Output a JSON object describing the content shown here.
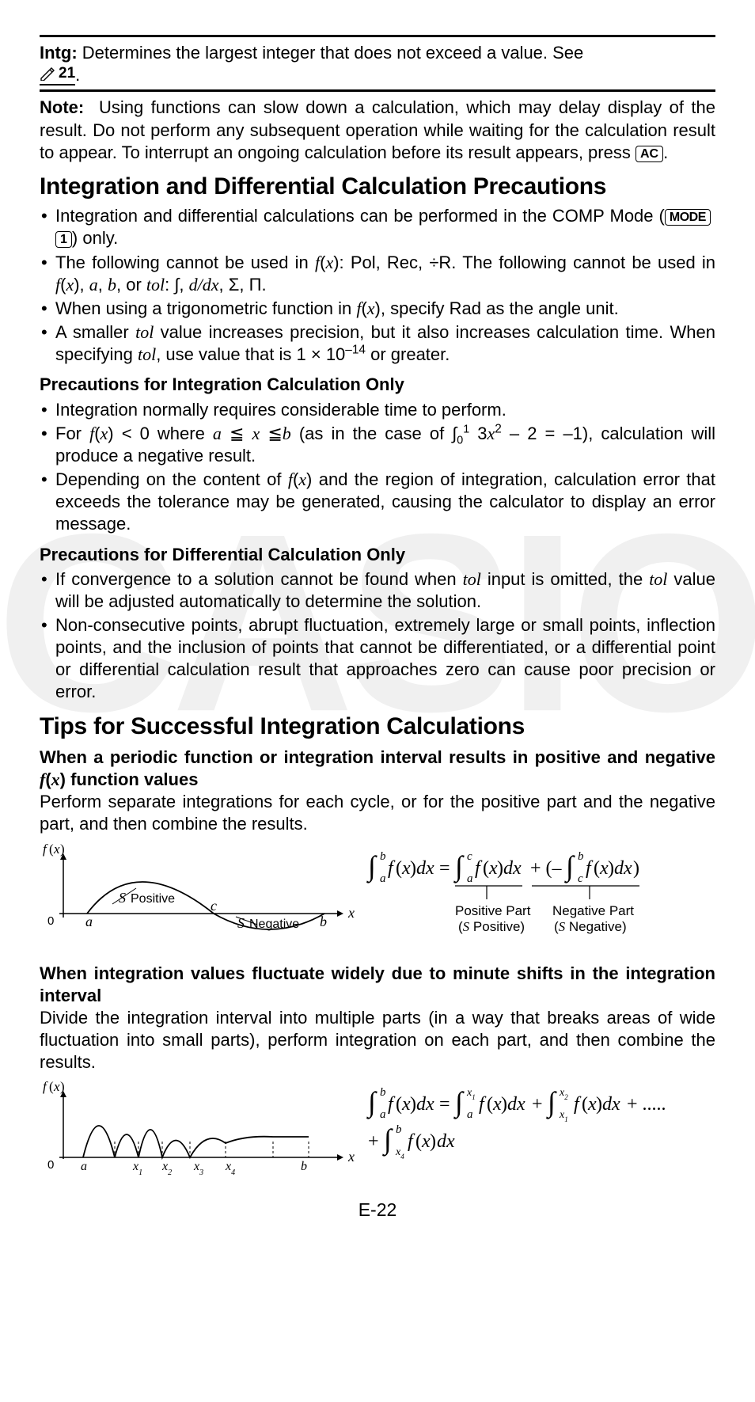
{
  "intg": {
    "label": "Intg:",
    "text": "Determines the largest integer that does not exceed a value. See",
    "ref_num": "21"
  },
  "note": {
    "label": "Note:",
    "text": "Using functions can slow down a calculation, which may delay display of the result. Do not perform any subsequent operation while waiting for the calculation result to appear. To interrupt an ongoing calculation before its result appears, press",
    "key": "AC"
  },
  "section1": {
    "title": "Integration and Differential Calculation Precautions",
    "bullets": [
      {
        "pre": "Integration and differential calculations can be performed in the COMP Mode (",
        "keys": [
          "MODE",
          "1"
        ],
        "post": ") only."
      },
      {
        "text_html": "The following cannot be used in <span class='fx'>f</span>(<span class='fx'>x</span>): Pol, Rec, ÷R. The following cannot be used in <span class='fx'>f</span>(<span class='fx'>x</span>), <span class='ital'>a</span>, <span class='ital'>b</span>, or <span class='ital'>tol</span>: ∫, <span class='ital'>d/dx</span>, Σ, Π."
      },
      {
        "text_html": "When using a trigonometric function in <span class='fx'>f</span>(<span class='fx'>x</span>), specify Rad as the angle unit."
      },
      {
        "text_html": "A smaller <span class='ital'>tol</span> value increases precision, but it also increases calculation time. When specifying <span class='ital'>tol</span>, use value that is 1 × 10<sup>–14</sup> or greater."
      }
    ],
    "sub1": {
      "title": "Precautions for Integration Calculation Only",
      "bullets": [
        {
          "text_html": "Integration normally requires considerable time to perform."
        },
        {
          "text_html": "For <span class='fx'>f</span>(<span class='fx'>x</span>) &lt; 0 where <span class='ital'>a</span> ≦ <span class='ital'>x</span> ≦<span class='ital'>b</span> (as in the case of ∫<sub style='font-size:0.65em'>0</sub><sup style='font-size:0.65em'>1</sup> 3<span class='ital'>x</span><sup>2</sup> – 2 = –1), calculation will produce a negative result."
        },
        {
          "text_html": "Depending on the content of <span class='fx'>f</span>(<span class='fx'>x</span>) and the region of integration, calculation error that exceeds the tolerance may be generated, causing the calculator to display an error message."
        }
      ]
    },
    "sub2": {
      "title": "Precautions for Differential Calculation Only",
      "bullets": [
        {
          "text_html": "If convergence to a solution cannot be found when <span class='ital'>tol</span> input is omitted, the <span class='ital'>tol</span> value will be adjusted automatically to determine the solution."
        },
        {
          "text_html": "Non-consecutive points, abrupt fluctuation, extremely large or small points, inflection points, and the inclusion of points that cannot be differentiated, or a differential point or differential calculation result that approaches zero can cause poor precision or error."
        }
      ]
    }
  },
  "section2": {
    "title": "Tips for Successful Integration Calculations",
    "tip1": {
      "head_html": "When a periodic function or integration interval results in positive and negative <span class='fx'>f</span>(<span class='fx'>x</span>) function values",
      "body": "Perform separate integrations for each cycle, or for the positive part and the negative part, and then combine the results.",
      "fig": {
        "fx_label": "f(x)",
        "s_pos": "S Positive",
        "s_neg": "S Negative",
        "axis_labels": {
          "zero": "0",
          "a": "a",
          "c": "c",
          "b": "b",
          "x": "x"
        },
        "eq_parts": {
          "pos_label": "Positive Part",
          "pos_sub": "(S Positive)",
          "neg_label": "Negative Part",
          "neg_sub": "(S Negative)"
        }
      }
    },
    "tip2": {
      "head": "When integration values fluctuate widely due to minute shifts in the integration interval",
      "body": "Divide the integration interval into multiple parts (in a way that breaks areas of wide fluctuation into small parts), perform integration on each part, and then combine the results.",
      "fig": {
        "fx_label": "f(x)",
        "axis_labels": {
          "zero": "0",
          "a": "a",
          "x1": "x₁",
          "x2": "x₂",
          "x3": "x₃",
          "x4": "x₄",
          "b": "b",
          "x": "x"
        }
      }
    }
  },
  "page": "E-22"
}
